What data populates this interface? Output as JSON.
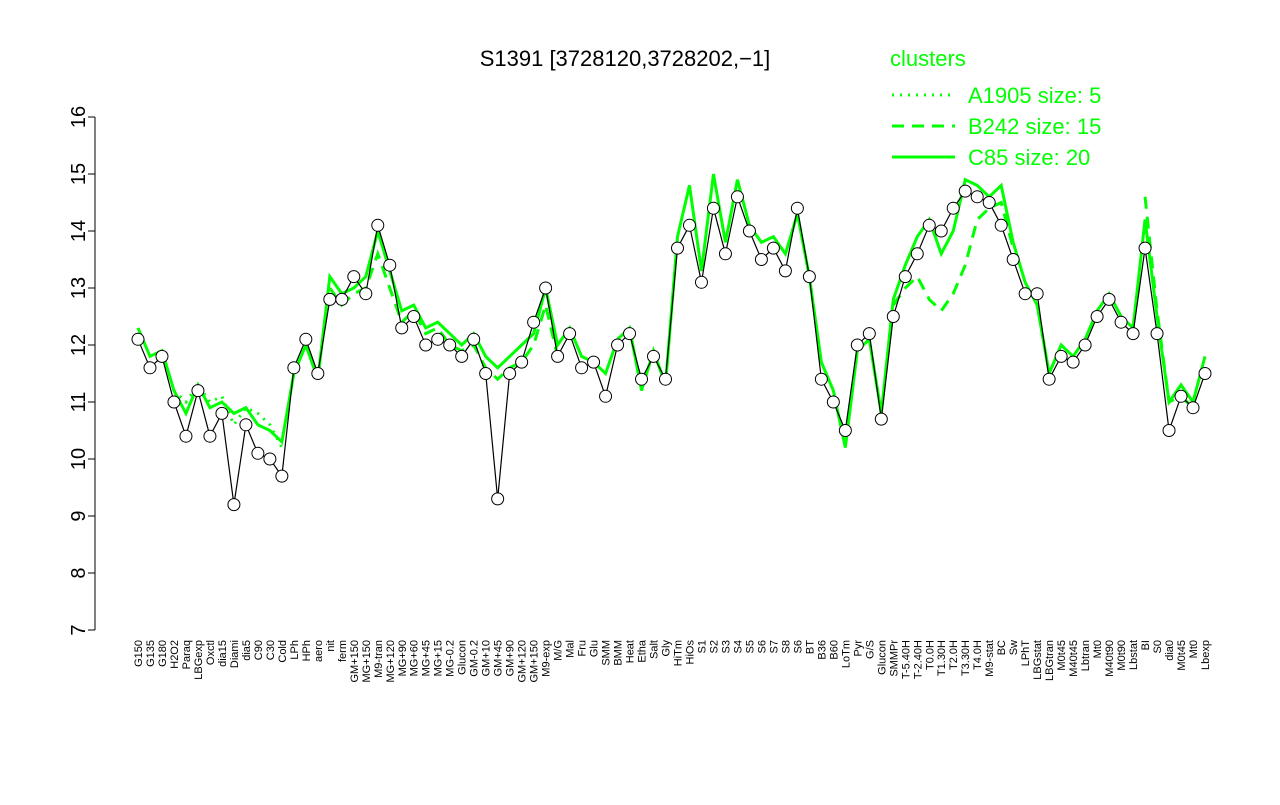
{
  "chart_data": {
    "type": "line",
    "title": "S1391 [3728120,3728202,−1]",
    "legend_title": "clusters",
    "legend_color": "#00ff00",
    "line_color": "#000000",
    "marker_fill": "#ffffff",
    "ylim": [
      7,
      16
    ],
    "yticks": [
      7,
      8,
      9,
      10,
      11,
      12,
      13,
      14,
      15,
      16
    ],
    "categories": [
      "G150",
      "G135",
      "G180",
      "H2O2",
      "Paraq",
      "LBGexp",
      "Oxctl",
      "dia15",
      "Diami",
      "dia5",
      "C90",
      "C30",
      "Cold",
      "LPh",
      "HPh",
      "aero",
      "nit",
      "ferm",
      "GM+150",
      "MG+150",
      "M9-tran",
      "MG+120",
      "MG+90",
      "MG+60",
      "MG+45",
      "MG+15",
      "MG-0.2",
      "Glucon",
      "GM-0.2",
      "GM+10",
      "GM+45",
      "GM+90",
      "GM+120",
      "GM+150",
      "M9-exp",
      "M/G",
      "Mal",
      "Fru",
      "Glu",
      "SMM",
      "BMM",
      "Heat",
      "Etha",
      "Salt",
      "Gly",
      "HiTm",
      "HiOs",
      "S1",
      "S2",
      "S3",
      "S4",
      "S5",
      "S6",
      "S7",
      "S8",
      "S6",
      "BT",
      "B36",
      "B60",
      "LoTm",
      "Pyr",
      "G/S",
      "Glucon",
      "SMMPr",
      "T-5.40H",
      "T-2.40H",
      "T0.0H",
      "T1.30H",
      "T2.0H",
      "T3.30H",
      "T4.0H",
      "M9-stat",
      "BC",
      "Sw",
      "LPhT",
      "LBGstat",
      "LBGtran",
      "M0t45",
      "M40t45",
      "Lbtran",
      "Mt0",
      "M40t90",
      "M0t90",
      "Lbstat",
      "BI",
      "S0",
      "dia0",
      "M0t45",
      "Mt0",
      "Lbexp"
    ],
    "values": [
      12.1,
      11.6,
      11.8,
      11.0,
      10.4,
      11.2,
      10.4,
      10.8,
      9.2,
      10.6,
      10.1,
      10.0,
      9.7,
      11.6,
      12.1,
      11.5,
      12.8,
      12.8,
      13.2,
      12.9,
      14.1,
      13.4,
      12.3,
      12.5,
      12.0,
      12.1,
      12.0,
      11.8,
      12.1,
      11.5,
      9.3,
      11.5,
      11.7,
      12.4,
      13.0,
      11.8,
      12.2,
      11.6,
      11.7,
      11.1,
      12.0,
      12.2,
      11.4,
      11.8,
      11.4,
      13.7,
      14.1,
      13.1,
      14.4,
      13.6,
      14.6,
      14.0,
      13.5,
      13.7,
      13.3,
      14.4,
      13.2,
      11.4,
      11.0,
      10.5,
      12.0,
      12.2,
      10.7,
      12.5,
      13.2,
      13.6,
      14.1,
      14.0,
      14.4,
      14.7,
      14.6,
      14.5,
      14.1,
      13.5,
      12.9,
      12.9,
      11.4,
      11.8,
      11.7,
      12.0,
      12.5,
      12.8,
      12.4,
      12.2,
      13.7,
      12.2,
      10.5,
      11.1,
      10.9,
      11.5
    ],
    "series": [
      {
        "name": "A1905 size: 5",
        "color": "#00ff00",
        "line_style": "dotted",
        "values": [
          null,
          null,
          null,
          11.2,
          11.0,
          11.3,
          11.0,
          11.1,
          10.6,
          10.9,
          10.8,
          10.6,
          10.2,
          null,
          null,
          null,
          null,
          null,
          null,
          null,
          null,
          null,
          null,
          null,
          null,
          null,
          null,
          null,
          null,
          null,
          null,
          null,
          null,
          null,
          null,
          null,
          null,
          null,
          null,
          null,
          null,
          null,
          null,
          null,
          null,
          null,
          null,
          null,
          null,
          null,
          null,
          null,
          null,
          null,
          null,
          null,
          null,
          null,
          null,
          null,
          null,
          null,
          null,
          null,
          null,
          null,
          null,
          null,
          null,
          null,
          null,
          null,
          null,
          null,
          null,
          null,
          null,
          null,
          null,
          null,
          null,
          null,
          null,
          null,
          null,
          null,
          null,
          null,
          null,
          null
        ]
      },
      {
        "name": "B242 size: 15",
        "color": "#00ff00",
        "line_style": "dashed",
        "values": [
          null,
          null,
          null,
          null,
          null,
          null,
          null,
          null,
          null,
          null,
          null,
          null,
          null,
          null,
          null,
          null,
          13.0,
          12.7,
          12.9,
          13.0,
          13.6,
          13.0,
          12.4,
          12.6,
          12.2,
          12.3,
          12.0,
          11.9,
          12.0,
          11.6,
          11.4,
          11.6,
          11.7,
          12.0,
          12.7,
          11.8,
          null,
          null,
          null,
          null,
          null,
          null,
          null,
          null,
          null,
          null,
          null,
          null,
          null,
          null,
          null,
          null,
          null,
          null,
          null,
          null,
          null,
          null,
          null,
          null,
          null,
          null,
          null,
          12.7,
          13.0,
          13.2,
          12.8,
          12.6,
          12.9,
          13.4,
          14.2,
          14.4,
          14.5,
          13.7,
          null,
          null,
          null,
          null,
          null,
          null,
          null,
          null,
          null,
          null,
          14.6,
          12.6,
          11.0,
          11.1,
          10.9,
          null
        ]
      },
      {
        "name": "C85 size: 20",
        "color": "#00ff00",
        "line_style": "solid",
        "values": [
          12.3,
          11.8,
          11.9,
          11.2,
          10.8,
          11.3,
          10.9,
          11.0,
          10.8,
          10.9,
          10.6,
          10.5,
          10.3,
          11.5,
          12.0,
          11.4,
          13.2,
          12.9,
          13.0,
          13.2,
          14.0,
          13.3,
          12.6,
          12.7,
          12.3,
          12.4,
          12.2,
          12.0,
          12.2,
          11.8,
          11.6,
          11.8,
          12.0,
          12.2,
          13.0,
          12.0,
          12.3,
          11.8,
          11.7,
          11.5,
          12.1,
          12.3,
          11.2,
          11.9,
          11.3,
          13.9,
          14.8,
          13.3,
          15.0,
          13.8,
          14.9,
          14.1,
          13.8,
          13.9,
          13.6,
          14.3,
          13.2,
          11.7,
          11.2,
          10.2,
          11.9,
          12.1,
          10.8,
          12.8,
          13.4,
          13.9,
          14.2,
          13.6,
          14.0,
          14.9,
          14.8,
          14.6,
          14.8,
          13.8,
          13.1,
          12.7,
          11.5,
          12.0,
          11.8,
          12.1,
          12.6,
          12.9,
          12.5,
          12.3,
          14.2,
          12.5,
          11.0,
          11.3,
          11.0,
          11.8
        ]
      }
    ]
  }
}
